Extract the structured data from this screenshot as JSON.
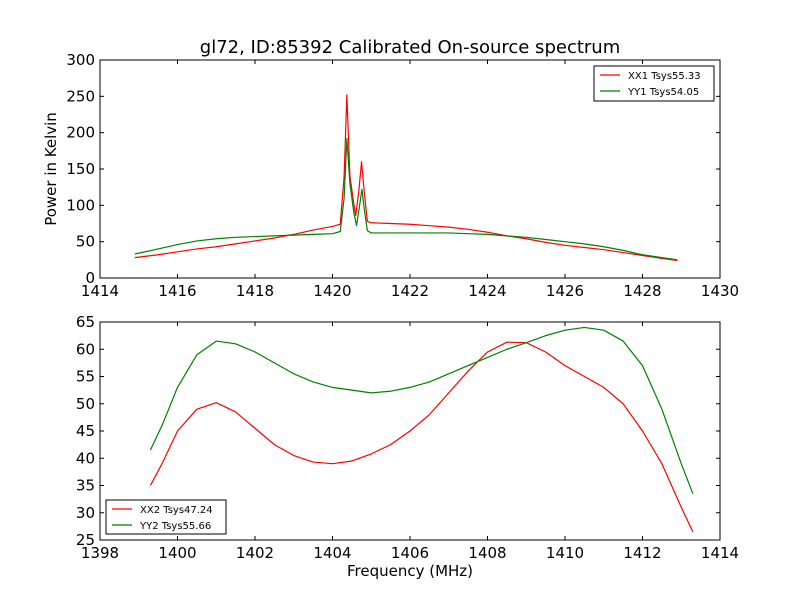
{
  "figure": {
    "title": "gl72, ID:85392 Calibrated On-source spectrum"
  },
  "colors": {
    "red": "#ff0000",
    "green": "#008000",
    "axes": "#000000",
    "background": "#ffffff"
  },
  "chart_data": [
    {
      "type": "line",
      "title": "gl72, ID:85392 Calibrated On-source spectrum",
      "xlabel": "",
      "ylabel": "Power in Kelvin",
      "xlim": [
        1414,
        1430
      ],
      "ylim": [
        0,
        300
      ],
      "xticks": [
        1414,
        1416,
        1418,
        1420,
        1422,
        1424,
        1426,
        1428,
        1430
      ],
      "yticks": [
        0,
        50,
        100,
        150,
        200,
        250,
        300
      ],
      "grid": false,
      "legend": "top-right",
      "series": [
        {
          "name": "XX1 Tsys55.33",
          "color": "#ff0000",
          "points": [
            [
              1414.9,
              28
            ],
            [
              1415.5,
              32
            ],
            [
              1416.0,
              36
            ],
            [
              1416.5,
              40
            ],
            [
              1417.0,
              43
            ],
            [
              1417.5,
              47
            ],
            [
              1418.0,
              51
            ],
            [
              1418.5,
              55
            ],
            [
              1419.0,
              60
            ],
            [
              1419.5,
              66
            ],
            [
              1420.0,
              71
            ],
            [
              1420.2,
              74
            ],
            [
              1420.3,
              140
            ],
            [
              1420.37,
              252
            ],
            [
              1420.45,
              140
            ],
            [
              1420.55,
              102
            ],
            [
              1420.6,
              86
            ],
            [
              1420.68,
              120
            ],
            [
              1420.75,
              160
            ],
            [
              1420.82,
              118
            ],
            [
              1420.9,
              78
            ],
            [
              1421.0,
              76
            ],
            [
              1421.5,
              75
            ],
            [
              1422.0,
              74
            ],
            [
              1422.5,
              72
            ],
            [
              1423.0,
              70
            ],
            [
              1423.5,
              67
            ],
            [
              1424.0,
              63
            ],
            [
              1424.5,
              58
            ],
            [
              1425.0,
              54
            ],
            [
              1425.5,
              49
            ],
            [
              1426.0,
              45
            ],
            [
              1426.5,
              42
            ],
            [
              1427.0,
              39
            ],
            [
              1427.5,
              35
            ],
            [
              1428.0,
              31
            ],
            [
              1428.5,
              27
            ],
            [
              1428.9,
              24
            ]
          ]
        },
        {
          "name": "YY1 Tsys54.05",
          "color": "#008000",
          "points": [
            [
              1414.9,
              33
            ],
            [
              1415.5,
              40
            ],
            [
              1416.0,
              46
            ],
            [
              1416.5,
              51
            ],
            [
              1417.0,
              54
            ],
            [
              1417.5,
              56
            ],
            [
              1418.0,
              57
            ],
            [
              1418.5,
              58
            ],
            [
              1419.0,
              59
            ],
            [
              1419.5,
              60
            ],
            [
              1420.0,
              61
            ],
            [
              1420.2,
              64
            ],
            [
              1420.3,
              110
            ],
            [
              1420.37,
              192
            ],
            [
              1420.45,
              130
            ],
            [
              1420.55,
              90
            ],
            [
              1420.62,
              72
            ],
            [
              1420.7,
              100
            ],
            [
              1420.76,
              122
            ],
            [
              1420.82,
              95
            ],
            [
              1420.9,
              65
            ],
            [
              1421.0,
              62
            ],
            [
              1421.5,
              62
            ],
            [
              1422.0,
              62
            ],
            [
              1422.5,
              62
            ],
            [
              1423.0,
              62
            ],
            [
              1423.5,
              61
            ],
            [
              1424.0,
              60
            ],
            [
              1424.5,
              58
            ],
            [
              1425.0,
              56
            ],
            [
              1425.5,
              53
            ],
            [
              1426.0,
              50
            ],
            [
              1426.5,
              47
            ],
            [
              1427.0,
              43
            ],
            [
              1427.5,
              38
            ],
            [
              1428.0,
              32
            ],
            [
              1428.5,
              28
            ],
            [
              1428.9,
              25
            ]
          ]
        }
      ]
    },
    {
      "type": "line",
      "title": "",
      "xlabel": "Frequency (MHz)",
      "ylabel": "",
      "xlim": [
        1398,
        1414
      ],
      "ylim": [
        25,
        65
      ],
      "xticks": [
        1398,
        1400,
        1402,
        1404,
        1406,
        1408,
        1410,
        1412,
        1414
      ],
      "yticks": [
        25,
        30,
        35,
        40,
        45,
        50,
        55,
        60,
        65
      ],
      "grid": false,
      "legend": "bottom-left",
      "series": [
        {
          "name": "XX2 Tsys47.24",
          "color": "#ff0000",
          "points": [
            [
              1399.3,
              35
            ],
            [
              1399.6,
              39
            ],
            [
              1400.0,
              45
            ],
            [
              1400.5,
              49
            ],
            [
              1401.0,
              50.2
            ],
            [
              1401.5,
              48.5
            ],
            [
              1402.0,
              45.5
            ],
            [
              1402.5,
              42.5
            ],
            [
              1403.0,
              40.5
            ],
            [
              1403.5,
              39.3
            ],
            [
              1404.0,
              39
            ],
            [
              1404.5,
              39.5
            ],
            [
              1405.0,
              40.8
            ],
            [
              1405.5,
              42.5
            ],
            [
              1406.0,
              45
            ],
            [
              1406.5,
              48
            ],
            [
              1407.0,
              52
            ],
            [
              1407.5,
              56
            ],
            [
              1408.0,
              59.5
            ],
            [
              1408.5,
              61.3
            ],
            [
              1409.0,
              61.2
            ],
            [
              1409.5,
              59.5
            ],
            [
              1410.0,
              57
            ],
            [
              1410.5,
              55
            ],
            [
              1411.0,
              53
            ],
            [
              1411.5,
              50
            ],
            [
              1412.0,
              45
            ],
            [
              1412.5,
              39
            ],
            [
              1413.0,
              31
            ],
            [
              1413.3,
              26.5
            ]
          ]
        },
        {
          "name": "YY2 Tsys55.66",
          "color": "#008000",
          "points": [
            [
              1399.3,
              41.5
            ],
            [
              1399.6,
              46
            ],
            [
              1400.0,
              53
            ],
            [
              1400.5,
              59
            ],
            [
              1401.0,
              61.5
            ],
            [
              1401.5,
              61
            ],
            [
              1402.0,
              59.5
            ],
            [
              1402.5,
              57.5
            ],
            [
              1403.0,
              55.5
            ],
            [
              1403.5,
              54
            ],
            [
              1404.0,
              53
            ],
            [
              1404.5,
              52.5
            ],
            [
              1405.0,
              52
            ],
            [
              1405.5,
              52.3
            ],
            [
              1406.0,
              53
            ],
            [
              1406.5,
              54
            ],
            [
              1407.0,
              55.5
            ],
            [
              1407.5,
              57
            ],
            [
              1408.0,
              58.5
            ],
            [
              1408.5,
              60
            ],
            [
              1409.0,
              61.2
            ],
            [
              1409.5,
              62.5
            ],
            [
              1410.0,
              63.5
            ],
            [
              1410.5,
              64
            ],
            [
              1411.0,
              63.5
            ],
            [
              1411.5,
              61.5
            ],
            [
              1412.0,
              57
            ],
            [
              1412.5,
              49
            ],
            [
              1413.0,
              39
            ],
            [
              1413.3,
              33.5
            ]
          ]
        }
      ]
    }
  ]
}
